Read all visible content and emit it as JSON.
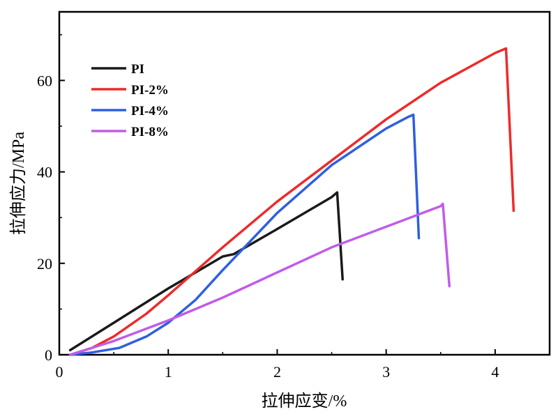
{
  "chart_data": {
    "type": "line",
    "xlabel": "拉伸应变/%",
    "ylabel": "拉伸应力/MPa",
    "xlim": [
      0,
      4.5
    ],
    "ylim": [
      0,
      75
    ],
    "xticks": [
      0,
      1,
      2,
      3,
      4
    ],
    "yticks": [
      0,
      20,
      40,
      60
    ],
    "legend_position": "top-left",
    "grid": false,
    "series": [
      {
        "name": "PI",
        "color": "#1a1a1a",
        "x": [
          0.1,
          0.5,
          1.0,
          1.5,
          1.6,
          2.0,
          2.5,
          2.55,
          2.6
        ],
        "y": [
          1,
          7,
          14.5,
          21.5,
          22,
          27.5,
          34.5,
          35.5,
          16.5
        ]
      },
      {
        "name": "PI-2%",
        "color": "#ee2a2a",
        "x": [
          0.1,
          0.3,
          0.5,
          0.8,
          1.0,
          1.5,
          2.0,
          2.5,
          3.0,
          3.5,
          4.0,
          4.1,
          4.17
        ],
        "y": [
          0,
          1.5,
          4,
          9,
          13,
          23.5,
          33.5,
          42.5,
          51.5,
          59.5,
          66,
          67,
          31.5
        ]
      },
      {
        "name": "PI-4%",
        "color": "#2f5fe0",
        "x": [
          0.1,
          0.3,
          0.55,
          0.8,
          1.0,
          1.25,
          1.5,
          2.0,
          2.5,
          3.0,
          3.2,
          3.25,
          3.3
        ],
        "y": [
          0,
          0.5,
          1.5,
          4,
          7,
          12,
          18.5,
          31,
          41.5,
          49.5,
          52,
          52.5,
          25.5
        ]
      },
      {
        "name": "PI-8%",
        "color": "#c05ce8",
        "x": [
          0.1,
          0.5,
          1.0,
          1.5,
          2.0,
          2.5,
          3.0,
          3.5,
          3.52,
          3.58
        ],
        "y": [
          0,
          3,
          7.5,
          12.5,
          18,
          23.5,
          28,
          32.5,
          33,
          15
        ]
      }
    ]
  }
}
